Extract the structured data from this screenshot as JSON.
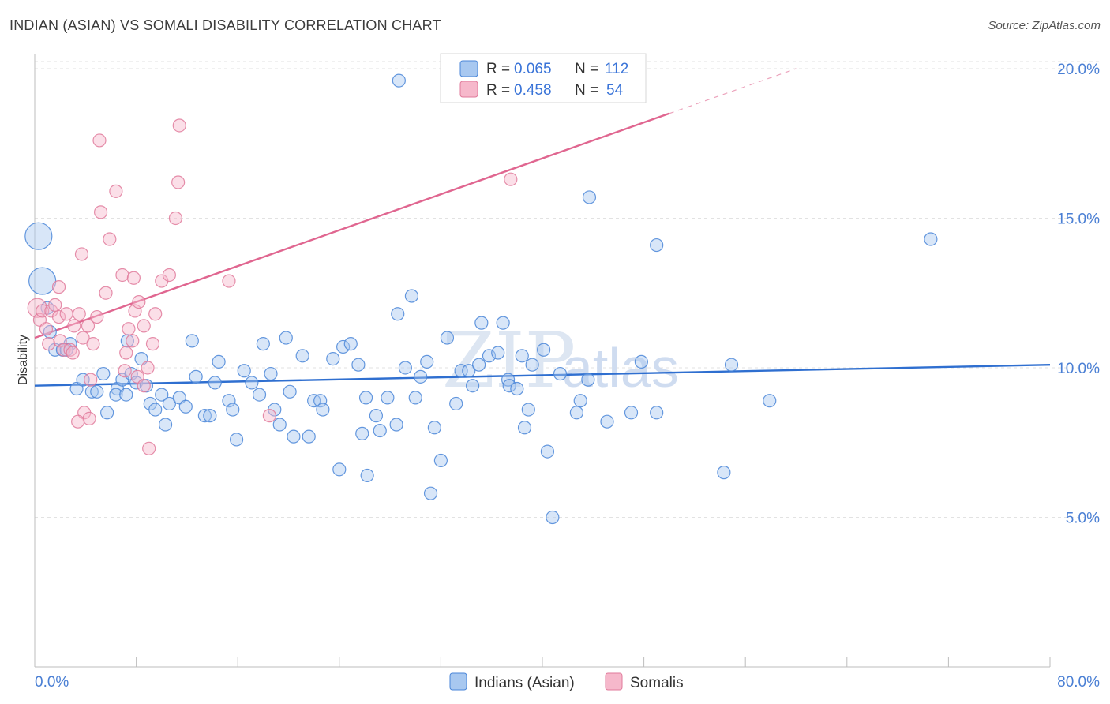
{
  "title": "INDIAN (ASIAN) VS SOMALI DISABILITY CORRELATION CHART",
  "source": "Source: ZipAtlas.com",
  "watermark": {
    "zip": "ZIP",
    "atlas": "atlas"
  },
  "legend": {
    "rows": [
      {
        "r_label": "R =",
        "r_value": "0.065",
        "n_label": "N =",
        "n_value": "112",
        "color": "#a8c8f0"
      },
      {
        "r_label": "R =",
        "r_value": "0.458",
        "n_label": "N =",
        "n_value": "54",
        "color": "#f6b8cb"
      }
    ]
  },
  "bottom_legend": [
    {
      "label": "Indians (Asian)",
      "color": "#a8c8f0"
    },
    {
      "label": "Somalis",
      "color": "#f6b8cb"
    }
  ],
  "chart_data": {
    "type": "scatter",
    "title": "INDIAN (ASIAN) VS SOMALI DISABILITY CORRELATION CHART",
    "xlabel": "",
    "ylabel": "Disability",
    "xlim": [
      0,
      80
    ],
    "ylim": [
      0,
      20.5
    ],
    "x_tick_labels": [
      "0.0%",
      "80.0%"
    ],
    "y_ticks": [
      5,
      10,
      15,
      20
    ],
    "y_tick_labels": [
      "5.0%",
      "10.0%",
      "15.0%",
      "20.0%"
    ],
    "grid": true,
    "series": [
      {
        "name": "Indians (Asian)",
        "color": "#4a86d8",
        "fill": "#a8c8f0",
        "trend": {
          "x": [
            0,
            80
          ],
          "y": [
            9.4,
            10.1
          ],
          "color": "#2f6fd0"
        },
        "points": [
          [
            0.3,
            14.4,
            3
          ],
          [
            0.6,
            12.9,
            3
          ],
          [
            1.0,
            12.0,
            1
          ],
          [
            1.2,
            11.2,
            1
          ],
          [
            1.6,
            10.6,
            1
          ],
          [
            2.2,
            10.6,
            1
          ],
          [
            2.8,
            10.8,
            1
          ],
          [
            2.5,
            10.6,
            1
          ],
          [
            3.3,
            9.3,
            1
          ],
          [
            3.8,
            9.6,
            1
          ],
          [
            4.5,
            9.2,
            1
          ],
          [
            4.9,
            9.2,
            1
          ],
          [
            5.4,
            9.8,
            1
          ],
          [
            5.7,
            8.5,
            1
          ],
          [
            6.5,
            9.3,
            1
          ],
          [
            6.4,
            9.1,
            1
          ],
          [
            6.9,
            9.6,
            1
          ],
          [
            7.2,
            9.1,
            1
          ],
          [
            7.6,
            9.8,
            1
          ],
          [
            8.0,
            9.5,
            1
          ],
          [
            7.3,
            10.9,
            1
          ],
          [
            8.4,
            10.3,
            1
          ],
          [
            8.8,
            9.4,
            1
          ],
          [
            9.1,
            8.8,
            1
          ],
          [
            9.5,
            8.6,
            1
          ],
          [
            10.0,
            9.1,
            1
          ],
          [
            10.3,
            8.1,
            1
          ],
          [
            10.6,
            8.8,
            1
          ],
          [
            11.4,
            9.0,
            1
          ],
          [
            11.9,
            8.7,
            1
          ],
          [
            12.4,
            10.9,
            1
          ],
          [
            12.7,
            9.7,
            1
          ],
          [
            13.4,
            8.4,
            1
          ],
          [
            13.8,
            8.4,
            1
          ],
          [
            14.2,
            9.5,
            1
          ],
          [
            14.5,
            10.2,
            1
          ],
          [
            15.3,
            8.9,
            1
          ],
          [
            15.6,
            8.6,
            1
          ],
          [
            15.9,
            7.6,
            1
          ],
          [
            16.5,
            9.9,
            1
          ],
          [
            17.1,
            9.5,
            1
          ],
          [
            17.7,
            9.1,
            1
          ],
          [
            18.0,
            10.8,
            1
          ],
          [
            18.6,
            9.8,
            1
          ],
          [
            18.9,
            8.6,
            1
          ],
          [
            19.3,
            8.1,
            1
          ],
          [
            19.8,
            11.0,
            1
          ],
          [
            20.1,
            9.2,
            1
          ],
          [
            20.4,
            7.7,
            1
          ],
          [
            21.1,
            10.4,
            1
          ],
          [
            21.6,
            7.7,
            1
          ],
          [
            22.0,
            8.9,
            1
          ],
          [
            22.5,
            8.9,
            1
          ],
          [
            22.7,
            8.6,
            1
          ],
          [
            23.5,
            10.3,
            1
          ],
          [
            24.0,
            6.6,
            1
          ],
          [
            24.3,
            10.7,
            1
          ],
          [
            24.9,
            10.8,
            1
          ],
          [
            25.5,
            10.1,
            1
          ],
          [
            25.8,
            7.8,
            1
          ],
          [
            26.1,
            9.0,
            1
          ],
          [
            26.2,
            6.4,
            1
          ],
          [
            26.9,
            8.4,
            1
          ],
          [
            27.2,
            7.9,
            1
          ],
          [
            27.8,
            9.0,
            1
          ],
          [
            28.5,
            8.1,
            1
          ],
          [
            28.6,
            11.8,
            1
          ],
          [
            29.2,
            10.0,
            1
          ],
          [
            29.7,
            12.4,
            1
          ],
          [
            30.0,
            9.0,
            1
          ],
          [
            30.4,
            9.7,
            1
          ],
          [
            30.9,
            10.2,
            1
          ],
          [
            31.2,
            5.8,
            1
          ],
          [
            31.5,
            8.0,
            1
          ],
          [
            32.0,
            6.9,
            1
          ],
          [
            32.5,
            11.0,
            1
          ],
          [
            33.2,
            8.8,
            1
          ],
          [
            33.6,
            9.9,
            1
          ],
          [
            34.2,
            9.9,
            1
          ],
          [
            34.5,
            9.4,
            1
          ],
          [
            35.0,
            10.1,
            1
          ],
          [
            35.2,
            11.5,
            1
          ],
          [
            35.8,
            10.4,
            1
          ],
          [
            36.5,
            10.5,
            1
          ],
          [
            36.9,
            11.5,
            1
          ],
          [
            37.3,
            9.6,
            1
          ],
          [
            37.4,
            9.4,
            1
          ],
          [
            38.0,
            9.3,
            1
          ],
          [
            38.4,
            10.4,
            1
          ],
          [
            38.6,
            8.0,
            1
          ],
          [
            38.9,
            8.6,
            1
          ],
          [
            40.1,
            10.6,
            1
          ],
          [
            39.2,
            10.1,
            1
          ],
          [
            40.4,
            7.2,
            1
          ],
          [
            40.8,
            5.0,
            1
          ],
          [
            41.4,
            9.8,
            1
          ],
          [
            42.7,
            8.5,
            1
          ],
          [
            43.0,
            8.9,
            1
          ],
          [
            43.6,
            9.6,
            1
          ],
          [
            43.7,
            15.7,
            1
          ],
          [
            45.1,
            8.2,
            1
          ],
          [
            47.0,
            8.5,
            1
          ],
          [
            47.8,
            10.2,
            1
          ],
          [
            49.0,
            8.5,
            1
          ],
          [
            49.0,
            14.1,
            1
          ],
          [
            54.3,
            6.5,
            1
          ],
          [
            54.9,
            10.1,
            1
          ],
          [
            57.9,
            8.9,
            1
          ],
          [
            70.6,
            14.3,
            1
          ],
          [
            46.9,
            19.5,
            1
          ],
          [
            28.7,
            19.6,
            1
          ],
          [
            41.5,
            19.5,
            1
          ]
        ]
      },
      {
        "name": "Somalis",
        "color": "#e07a9b",
        "fill": "#f6b8cb",
        "trend": {
          "x": [
            0,
            50
          ],
          "y": [
            11.0,
            18.5
          ],
          "dash_to": [
            60,
            20.0
          ],
          "color": "#e06690"
        },
        "points": [
          [
            0.2,
            12.0,
            2
          ],
          [
            0.4,
            11.6,
            1
          ],
          [
            0.6,
            11.9,
            1
          ],
          [
            0.9,
            11.3,
            1
          ],
          [
            1.3,
            11.9,
            1
          ],
          [
            1.6,
            12.1,
            1
          ],
          [
            1.9,
            11.7,
            1
          ],
          [
            1.1,
            10.8,
            1
          ],
          [
            2.0,
            10.9,
            1
          ],
          [
            2.3,
            10.6,
            1
          ],
          [
            2.5,
            11.8,
            1
          ],
          [
            2.8,
            10.6,
            1
          ],
          [
            3.0,
            10.5,
            1
          ],
          [
            3.1,
            11.4,
            1
          ],
          [
            3.5,
            11.8,
            1
          ],
          [
            3.8,
            11.0,
            1
          ],
          [
            4.2,
            11.4,
            1
          ],
          [
            4.6,
            10.8,
            1
          ],
          [
            4.9,
            11.7,
            1
          ],
          [
            4.4,
            9.6,
            1
          ],
          [
            3.9,
            8.5,
            1
          ],
          [
            4.3,
            8.3,
            1
          ],
          [
            3.4,
            8.2,
            1
          ],
          [
            1.9,
            12.7,
            1
          ],
          [
            3.7,
            13.8,
            1
          ],
          [
            5.6,
            12.5,
            1
          ],
          [
            5.9,
            14.3,
            1
          ],
          [
            6.4,
            15.9,
            1
          ],
          [
            6.9,
            13.1,
            1
          ],
          [
            7.4,
            11.3,
            1
          ],
          [
            7.7,
            10.9,
            1
          ],
          [
            7.9,
            11.9,
            1
          ],
          [
            8.2,
            12.2,
            1
          ],
          [
            8.6,
            11.4,
            1
          ],
          [
            8.9,
            10.0,
            1
          ],
          [
            9.3,
            10.8,
            1
          ],
          [
            9.5,
            11.8,
            1
          ],
          [
            10.0,
            12.9,
            1
          ],
          [
            10.6,
            13.1,
            1
          ],
          [
            11.1,
            15.0,
            1
          ],
          [
            11.3,
            16.2,
            1
          ],
          [
            11.4,
            18.1,
            1
          ],
          [
            5.1,
            17.6,
            1
          ],
          [
            5.2,
            15.2,
            1
          ],
          [
            7.2,
            10.5,
            1
          ],
          [
            7.1,
            9.9,
            1
          ],
          [
            8.1,
            9.7,
            1
          ],
          [
            8.6,
            9.4,
            1
          ],
          [
            9.0,
            7.3,
            1
          ],
          [
            7.8,
            13.0,
            1
          ],
          [
            15.3,
            12.9,
            1
          ],
          [
            18.5,
            8.4,
            1
          ],
          [
            37.5,
            16.3,
            1
          ],
          [
            42.5,
            19.2,
            1
          ]
        ]
      }
    ]
  }
}
